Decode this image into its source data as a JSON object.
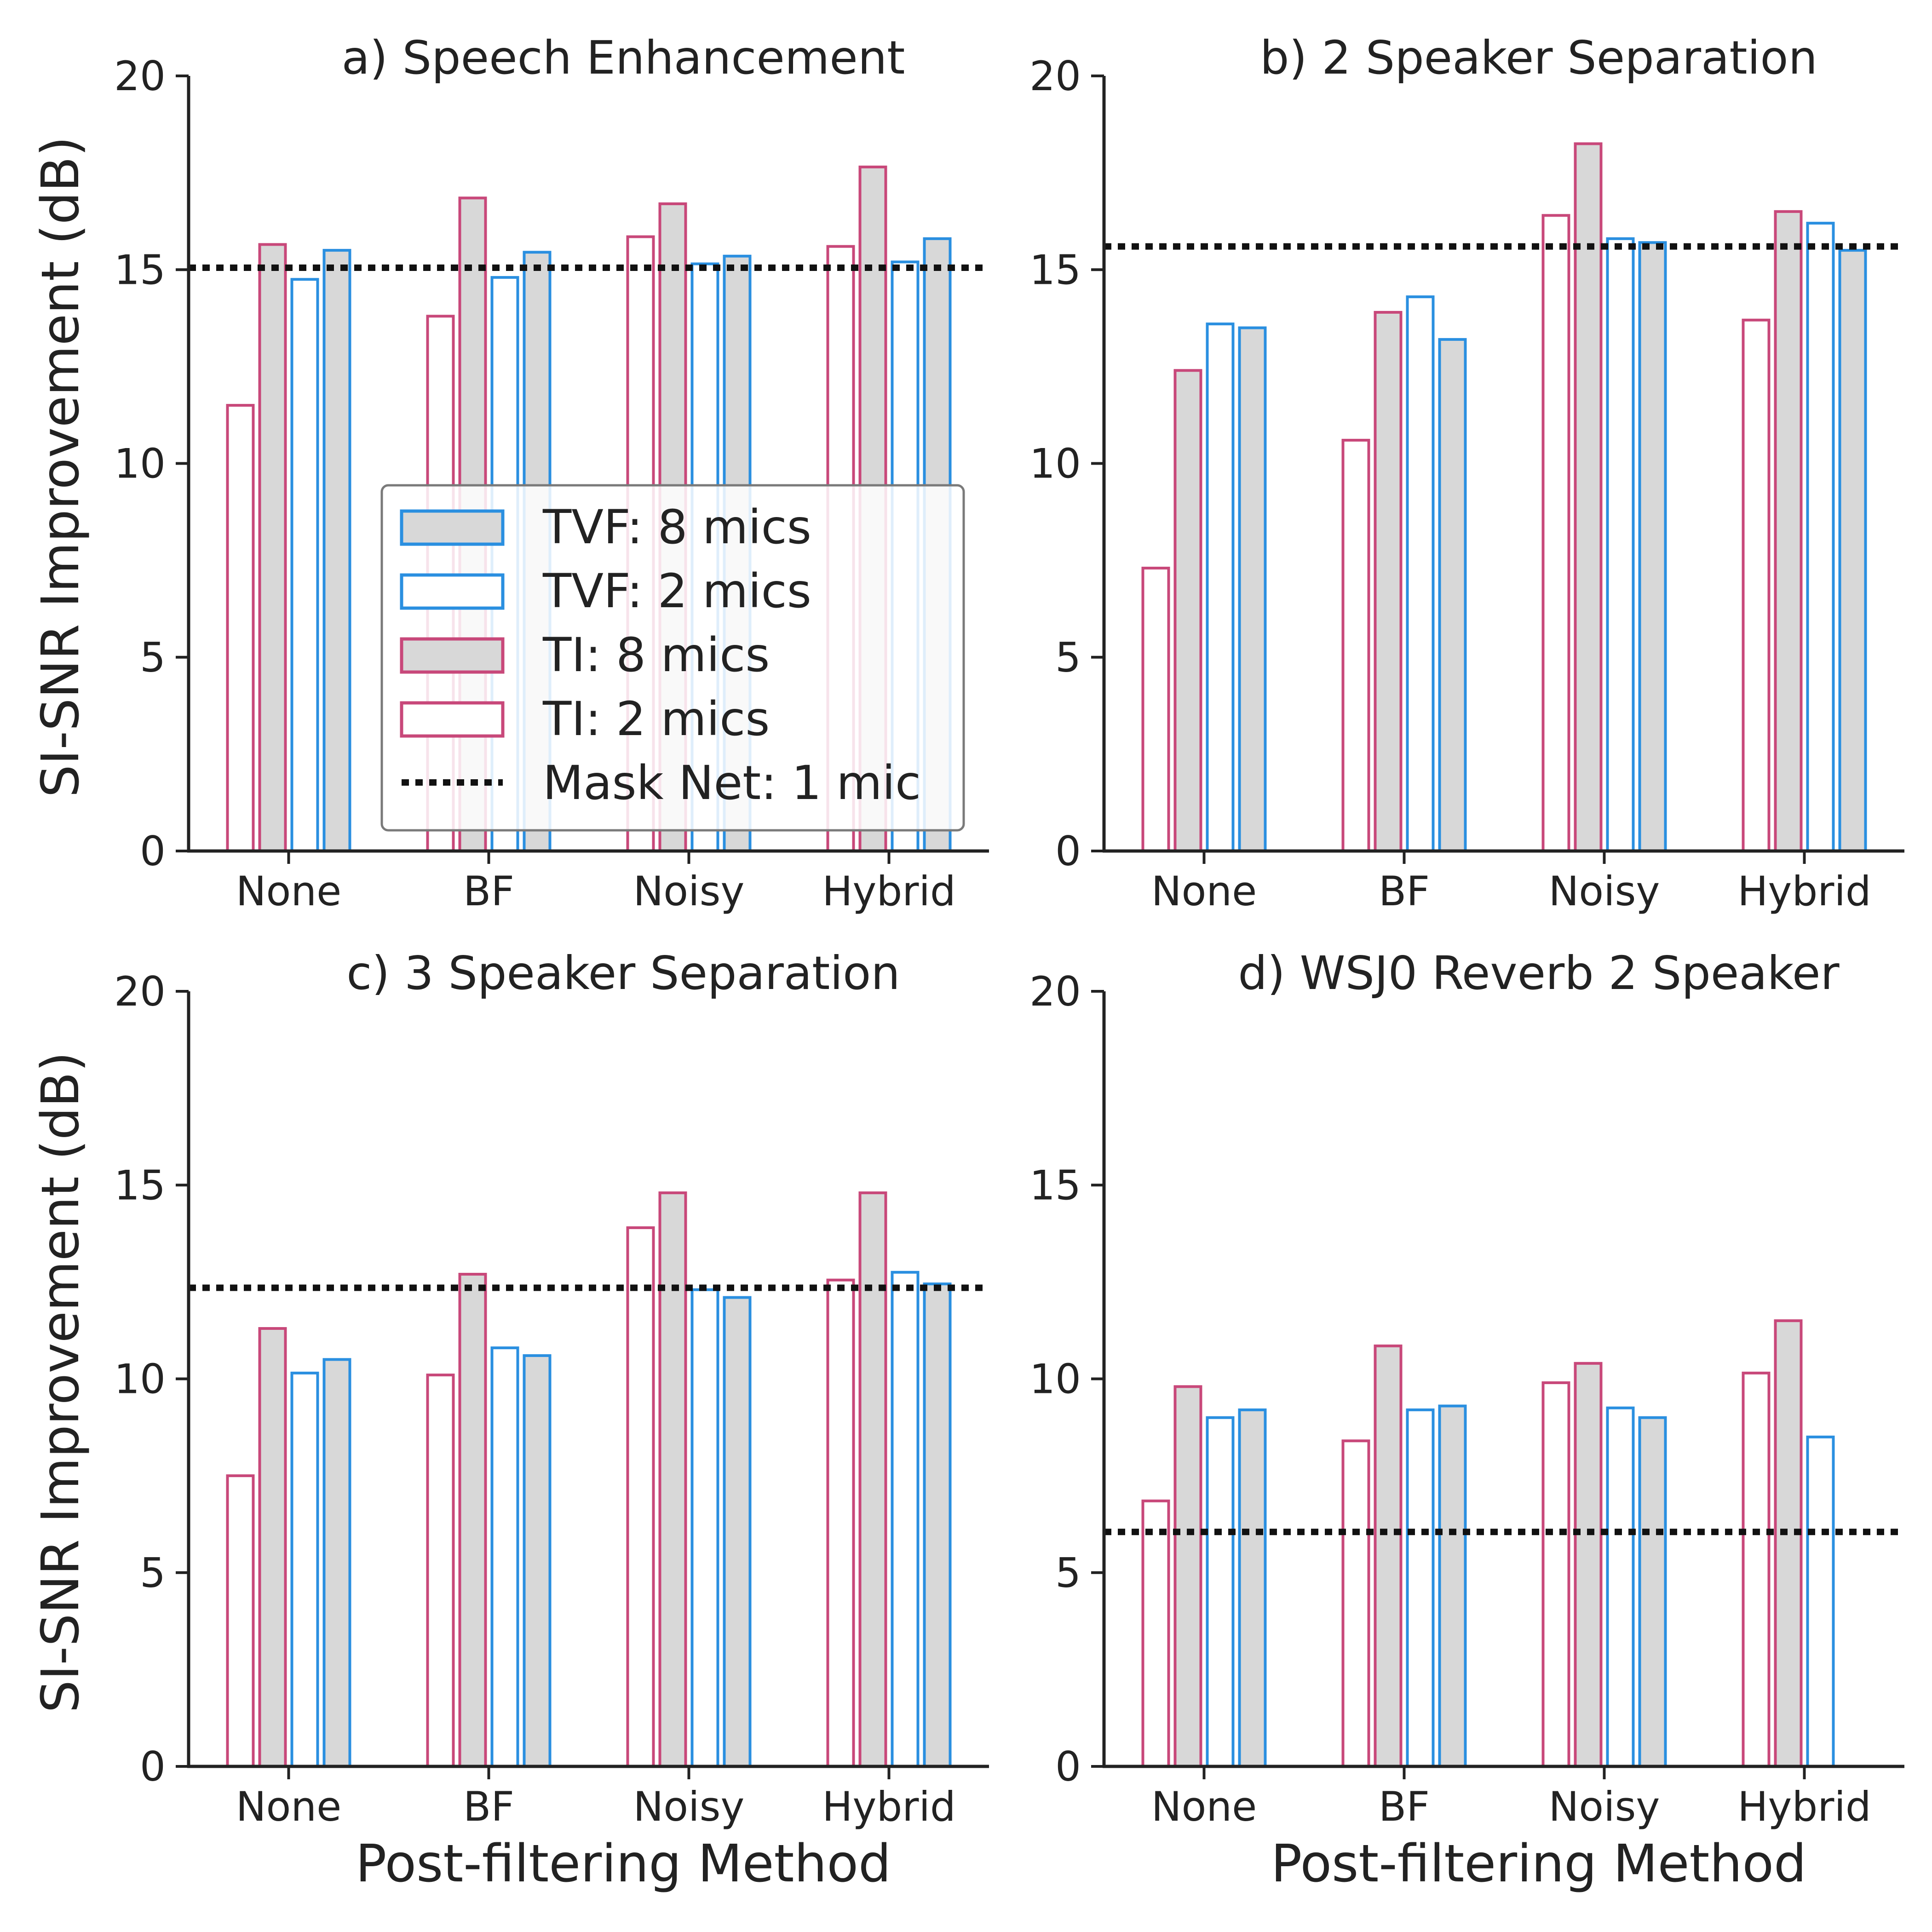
{
  "figure": {
    "ylabel": "SI-SNR Improvement (dB)",
    "xlabel": "Post-filtering Method",
    "colors": {
      "ti_edge": "#c8487a",
      "tvf_edge": "#2a8fe0",
      "fill_gray": "#d8d8d8",
      "mask_line": "#111111"
    }
  },
  "legend": {
    "items": [
      {
        "label": "TVF: 8 mics",
        "edge": "tvf",
        "filled": true
      },
      {
        "label": "TVF: 2 mics",
        "edge": "tvf",
        "filled": false
      },
      {
        "label": "TI: 8 mics",
        "edge": "ti",
        "filled": true
      },
      {
        "label": "TI: 2 mics",
        "edge": "ti",
        "filled": false
      },
      {
        "label": "Mask Net: 1 mic",
        "edge": "dotted",
        "filled": false
      }
    ],
    "location": "center"
  },
  "chart_data": [
    {
      "type": "bar",
      "title": "a) Speech Enhancement",
      "categories": [
        "None",
        "BF",
        "Noisy",
        "Hybrid"
      ],
      "ylim": [
        0,
        20
      ],
      "yticks": [
        0,
        5,
        10,
        15,
        20
      ],
      "series": [
        {
          "name": "TI: 2 mics",
          "values": [
            11.5,
            13.8,
            15.85,
            15.6
          ]
        },
        {
          "name": "TI: 8 mics",
          "values": [
            15.65,
            16.85,
            16.7,
            17.65
          ]
        },
        {
          "name": "TVF: 2 mics",
          "values": [
            14.75,
            14.8,
            15.15,
            15.2
          ]
        },
        {
          "name": "TVF: 8 mics",
          "values": [
            15.5,
            15.45,
            15.35,
            15.8
          ]
        }
      ],
      "reference": {
        "name": "Mask Net: 1 mic",
        "value": 15.05
      },
      "has_legend": true,
      "show_xlabel": false
    },
    {
      "type": "bar",
      "title": "b) 2 Speaker Separation",
      "categories": [
        "None",
        "BF",
        "Noisy",
        "Hybrid"
      ],
      "ylim": [
        0,
        20
      ],
      "yticks": [
        0,
        5,
        10,
        15,
        20
      ],
      "series": [
        {
          "name": "TI: 2 mics",
          "values": [
            7.3,
            10.6,
            16.4,
            13.7
          ]
        },
        {
          "name": "TI: 8 mics",
          "values": [
            12.4,
            13.9,
            18.25,
            16.5
          ]
        },
        {
          "name": "TVF: 2 mics",
          "values": [
            13.6,
            14.3,
            15.8,
            16.2
          ]
        },
        {
          "name": "TVF: 8 mics",
          "values": [
            13.5,
            13.2,
            15.7,
            15.5
          ]
        }
      ],
      "reference": {
        "name": "Mask Net: 1 mic",
        "value": 15.6
      },
      "has_legend": false,
      "show_xlabel": false
    },
    {
      "type": "bar",
      "title": "c) 3 Speaker Separation",
      "categories": [
        "None",
        "BF",
        "Noisy",
        "Hybrid"
      ],
      "ylim": [
        0,
        20
      ],
      "yticks": [
        0,
        5,
        10,
        15,
        20
      ],
      "series": [
        {
          "name": "TI: 2 mics",
          "values": [
            7.5,
            10.1,
            13.9,
            12.55
          ]
        },
        {
          "name": "TI: 8 mics",
          "values": [
            11.3,
            12.7,
            14.8,
            14.8
          ]
        },
        {
          "name": "TVF: 2 mics",
          "values": [
            10.15,
            10.8,
            12.3,
            12.75
          ]
        },
        {
          "name": "TVF: 8 mics",
          "values": [
            10.5,
            10.6,
            12.1,
            12.45
          ]
        }
      ],
      "reference": {
        "name": "Mask Net: 1 mic",
        "value": 12.35
      },
      "has_legend": false,
      "show_xlabel": true
    },
    {
      "type": "bar",
      "title": "d) WSJ0 Reverb 2 Speaker",
      "categories": [
        "None",
        "BF",
        "Noisy",
        "Hybrid"
      ],
      "ylim": [
        0,
        20
      ],
      "yticks": [
        0,
        5,
        10,
        15,
        20
      ],
      "series": [
        {
          "name": "TI: 2 mics",
          "values": [
            6.85,
            8.4,
            9.9,
            10.15
          ]
        },
        {
          "name": "TI: 8 mics",
          "values": [
            9.8,
            10.85,
            10.4,
            11.5
          ]
        },
        {
          "name": "TVF: 2 mics",
          "values": [
            9.0,
            9.2,
            9.25,
            8.5
          ]
        },
        {
          "name": "TVF: 8 mics",
          "values": [
            9.2,
            9.3,
            9.0,
            null
          ]
        }
      ],
      "reference": {
        "name": "Mask Net: 1 mic",
        "value": 6.05
      },
      "has_legend": false,
      "show_xlabel": true
    }
  ]
}
